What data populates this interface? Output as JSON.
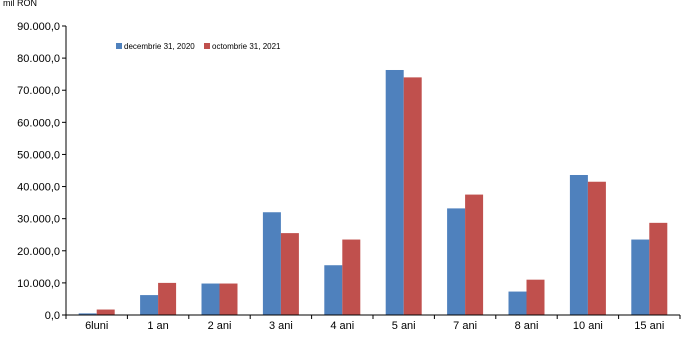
{
  "chart_data": {
    "type": "bar",
    "title": "",
    "ylabel": "mil RON",
    "xlabel": "",
    "ylim": [
      0,
      90000
    ],
    "yticks": [
      0,
      10000,
      20000,
      30000,
      40000,
      50000,
      60000,
      70000,
      80000,
      90000
    ],
    "ytick_labels": [
      "0,0",
      "10.000,0",
      "20.000,0",
      "30.000,0",
      "40.000,0",
      "50.000,0",
      "60.000,0",
      "70.000,0",
      "80.000,0",
      "90.000,0"
    ],
    "categories": [
      "6luni",
      "1 an",
      "2 ani",
      "3 ani",
      "4 ani",
      "5 ani",
      "7 ani",
      "8 ani",
      "10 ani",
      "15 ani"
    ],
    "series": [
      {
        "name": "decembrie 31, 2020",
        "color": "#4f81bd",
        "values": [
          500,
          6200,
          9800,
          32000,
          15500,
          76300,
          33200,
          7300,
          43600,
          23500
        ]
      },
      {
        "name": "octombrie 31, 2021",
        "color": "#c0504d",
        "values": [
          1700,
          10000,
          9800,
          25500,
          23500,
          74000,
          37500,
          11000,
          41500,
          28700
        ]
      }
    ],
    "legend_position": "top-left",
    "grid": false
  }
}
